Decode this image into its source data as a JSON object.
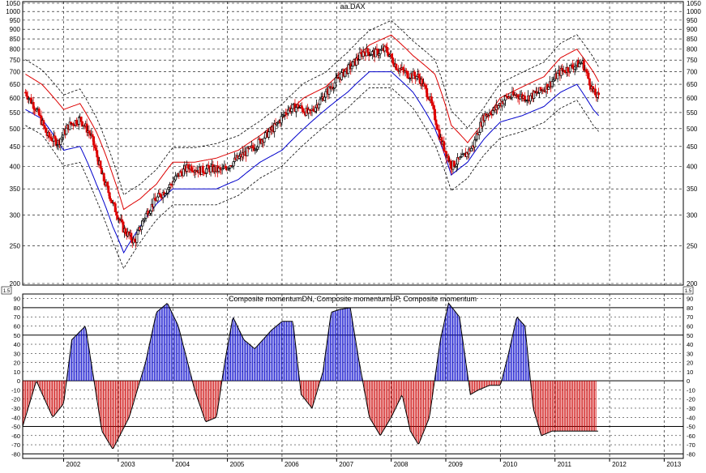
{
  "charts": {
    "top": {
      "title": "aa.DAX",
      "corner_label": "1.5",
      "y_ticks": [
        200,
        250,
        300,
        350,
        400,
        450,
        500,
        550,
        600,
        650,
        700,
        750,
        800,
        850,
        900,
        950,
        1000,
        1050
      ]
    },
    "bottom": {
      "title": "Composite momentumDN, Composite momentumUP, Composite momentum",
      "y_ticks": [
        90,
        80,
        70,
        60,
        50,
        40,
        30,
        20,
        10,
        0,
        -10,
        -20,
        -30,
        -40,
        -50,
        -60,
        -70,
        -80
      ],
      "ref_lines": [
        80,
        50,
        0,
        -50,
        -80
      ]
    },
    "x_labels": [
      "2002",
      "2003",
      "2004",
      "2005",
      "2006",
      "2007",
      "2008",
      "2009",
      "2010",
      "2011",
      "2012",
      "2013"
    ]
  },
  "colors": {
    "up_bar": "#000000",
    "down_bar": "#dd0000",
    "upper_band": "#dd0000",
    "lower_band": "#0000cc",
    "envelope": "#000000",
    "momentum_up": "#0000cc",
    "momentum_dn": "#cc0000",
    "grid": "#000000"
  },
  "chart_data": [
    {
      "type": "candlestick",
      "title": "aa.DAX",
      "scale": "log",
      "ylim": [
        200,
        1050
      ],
      "x_range": [
        2001.25,
        2013.35
      ],
      "series": [
        {
          "name": "price",
          "x": [
            2001.3,
            2001.5,
            2001.7,
            2001.9,
            2002.1,
            2002.3,
            2002.5,
            2002.7,
            2002.9,
            2003.1,
            2003.3,
            2003.5,
            2003.7,
            2003.9,
            2004.1,
            2004.3,
            2004.5,
            2004.7,
            2004.9,
            2005.1,
            2005.3,
            2005.5,
            2005.7,
            2005.9,
            2006.1,
            2006.3,
            2006.5,
            2006.7,
            2006.9,
            2007.1,
            2007.3,
            2007.5,
            2007.7,
            2007.9,
            2008.1,
            2008.3,
            2008.5,
            2008.7,
            2008.9,
            2009.1,
            2009.3,
            2009.5,
            2009.7,
            2009.9,
            2010.1,
            2010.3,
            2010.5,
            2010.7,
            2010.9,
            2011.1,
            2011.3,
            2011.5,
            2011.7,
            2011.8
          ],
          "close": [
            620,
            560,
            480,
            460,
            510,
            530,
            480,
            380,
            320,
            275,
            255,
            300,
            330,
            350,
            380,
            400,
            390,
            395,
            390,
            410,
            430,
            450,
            480,
            510,
            560,
            570,
            545,
            590,
            640,
            690,
            730,
            790,
            780,
            800,
            720,
            690,
            680,
            600,
            470,
            400,
            420,
            450,
            540,
            560,
            600,
            610,
            600,
            620,
            650,
            700,
            720,
            740,
            620,
            600
          ]
        }
      ],
      "bands": [
        {
          "name": "upper",
          "x": [
            2001.3,
            2001.6,
            2002.0,
            2002.3,
            2002.6,
            2002.9,
            2003.1,
            2003.4,
            2003.7,
            2004.0,
            2004.4,
            2004.8,
            2005.2,
            2005.6,
            2006.0,
            2006.4,
            2006.8,
            2007.2,
            2007.6,
            2008.0,
            2008.4,
            2008.8,
            2009.1,
            2009.4,
            2009.7,
            2010.0,
            2010.4,
            2010.8,
            2011.1,
            2011.4,
            2011.7,
            2011.8
          ],
          "values": [
            690,
            650,
            560,
            580,
            490,
            380,
            310,
            330,
            360,
            410,
            410,
            420,
            440,
            480,
            530,
            600,
            640,
            720,
            820,
            870,
            770,
            690,
            510,
            460,
            520,
            600,
            640,
            680,
            760,
            800,
            700,
            660
          ]
        },
        {
          "name": "lower",
          "x": [
            2001.3,
            2001.6,
            2002.0,
            2002.3,
            2002.6,
            2002.9,
            2003.1,
            2003.4,
            2003.7,
            2004.0,
            2004.4,
            2004.8,
            2005.2,
            2005.6,
            2006.0,
            2006.4,
            2006.8,
            2007.2,
            2007.6,
            2008.0,
            2008.4,
            2008.8,
            2009.1,
            2009.4,
            2009.7,
            2010.0,
            2010.4,
            2010.8,
            2011.1,
            2011.4,
            2011.7,
            2011.8
          ],
          "values": [
            560,
            530,
            440,
            450,
            360,
            280,
            240,
            280,
            320,
            350,
            350,
            350,
            370,
            410,
            440,
            500,
            560,
            620,
            700,
            700,
            620,
            500,
            380,
            410,
            470,
            520,
            540,
            570,
            620,
            650,
            560,
            540
          ]
        }
      ]
    },
    {
      "type": "area",
      "title": "Composite momentumDN, Composite momentumUP, Composite momentum",
      "ylim": [
        -85,
        95
      ],
      "series": [
        {
          "name": "Composite momentum",
          "x": [
            2001.25,
            2001.5,
            2001.8,
            2002.0,
            2002.15,
            2002.4,
            2002.7,
            2002.9,
            2003.2,
            2003.5,
            2003.7,
            2003.9,
            2004.1,
            2004.4,
            2004.6,
            2004.8,
            2004.95,
            2005.1,
            2005.3,
            2005.5,
            2005.8,
            2006.0,
            2006.2,
            2006.35,
            2006.55,
            2006.75,
            2006.9,
            2007.05,
            2007.25,
            2007.4,
            2007.6,
            2007.8,
            2008.0,
            2008.2,
            2008.35,
            2008.5,
            2008.7,
            2008.9,
            2009.05,
            2009.25,
            2009.45,
            2009.6,
            2009.8,
            2010.0,
            2010.15,
            2010.3,
            2010.45,
            2010.6,
            2010.75,
            2010.95,
            2011.1,
            2011.25,
            2011.45,
            2011.6,
            2011.75,
            2011.8
          ],
          "values": [
            -50,
            0,
            -40,
            -25,
            45,
            60,
            -55,
            -75,
            -40,
            20,
            75,
            85,
            60,
            -10,
            -45,
            -40,
            20,
            70,
            45,
            35,
            55,
            65,
            65,
            -15,
            -30,
            10,
            75,
            78,
            80,
            25,
            -40,
            -60,
            -40,
            -15,
            -55,
            -70,
            -40,
            45,
            85,
            70,
            -15,
            -10,
            -5,
            -5,
            30,
            70,
            60,
            -30,
            -60,
            -55,
            -55,
            -55,
            -55,
            -55,
            -55,
            -55
          ]
        }
      ]
    }
  ]
}
